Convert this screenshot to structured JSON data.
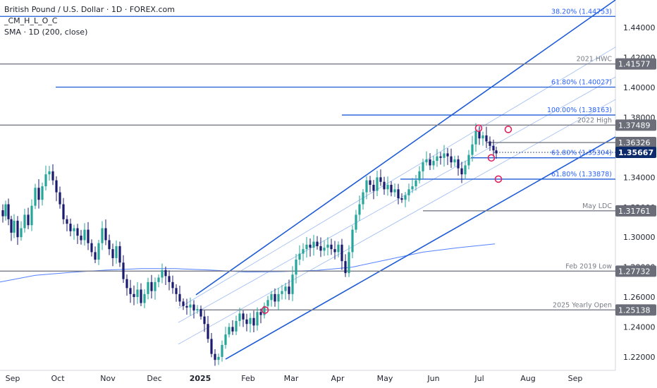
{
  "legend": {
    "title": "British Pound / U.S. Dollar · 1D · FOREX.com",
    "study1": "_CM_H_L_O_C",
    "study2": "SMA · 1D (200, close)"
  },
  "chart_data": {
    "type": "candlestick",
    "ylim": [
      1.211,
      1.4585
    ],
    "y_ticks": [
      {
        "value": 1.22,
        "label": "1.22000"
      },
      {
        "value": 1.24,
        "label": "1.24000"
      },
      {
        "value": 1.26,
        "label": "1.26000"
      },
      {
        "value": 1.28,
        "label": "1.28000"
      },
      {
        "value": 1.3,
        "label": "1.30000"
      },
      {
        "value": 1.32,
        "label": "1.32000"
      },
      {
        "value": 1.34,
        "label": "1.34000"
      },
      {
        "value": 1.36,
        "label": "1.36000"
      },
      {
        "value": 1.38,
        "label": "1.38000"
      },
      {
        "value": 1.4,
        "label": "1.40000"
      },
      {
        "value": 1.42,
        "label": "1.42000"
      },
      {
        "value": 1.44,
        "label": "1.44000"
      }
    ],
    "x_ticks": [
      {
        "label": "Sep",
        "bold": false
      },
      {
        "label": "Oct",
        "bold": false
      },
      {
        "label": "Nov",
        "bold": false
      },
      {
        "label": "Dec",
        "bold": false
      },
      {
        "label": "2025",
        "bold": true
      },
      {
        "label": "Feb",
        "bold": false
      },
      {
        "label": "Mar",
        "bold": false
      },
      {
        "label": "Apr",
        "bold": false
      },
      {
        "label": "May",
        "bold": false
      },
      {
        "label": "Jun",
        "bold": false
      },
      {
        "label": "Jul",
        "bold": false
      },
      {
        "label": "Aug",
        "bold": false
      },
      {
        "label": "Sep",
        "bold": false
      }
    ],
    "levels": [
      {
        "value": 1.44753,
        "label": "38.20% (1.44753)",
        "style": "fib",
        "tag": ""
      },
      {
        "value": 1.41577,
        "label": "2021 HWC",
        "style": "gray",
        "tag": "1.41577"
      },
      {
        "value": 1.40027,
        "label": "61.80% (1.40027)",
        "style": "fib",
        "tag": ""
      },
      {
        "value": 1.38163,
        "label": "100.00% (1.38163)",
        "style": "fib",
        "tag": ""
      },
      {
        "value": 1.37489,
        "label": "2022 High",
        "style": "gray",
        "tag": "1.37489"
      },
      {
        "value": 1.36326,
        "label": "",
        "style": "gray",
        "tag": "1.36326"
      },
      {
        "value": 1.35304,
        "label": "61.80% (1.35304)",
        "style": "fib",
        "tag": ""
      },
      {
        "value": 1.33878,
        "label": "61.80% (1.33878)",
        "style": "fib",
        "tag": ""
      },
      {
        "value": 1.31761,
        "label": "May LDC",
        "style": "gray",
        "tag": "1.31761"
      },
      {
        "value": 1.27732,
        "label": "Feb 2019 Low",
        "style": "gray",
        "tag": "1.27732"
      },
      {
        "value": 1.25138,
        "label": "2025 Yearly Open",
        "style": "gray",
        "tag": "1.25138"
      }
    ],
    "current_price": {
      "value": 1.35667,
      "label": "1.35667"
    },
    "ohlc_path": [
      [
        0,
        1.318
      ],
      [
        4,
        1.314
      ],
      [
        8,
        1.322
      ],
      [
        12,
        1.312
      ],
      [
        16,
        1.303
      ],
      [
        20,
        1.311
      ],
      [
        25,
        1.3
      ],
      [
        30,
        1.306
      ],
      [
        35,
        1.315
      ],
      [
        40,
        1.308
      ],
      [
        45,
        1.321
      ],
      [
        50,
        1.333
      ],
      [
        55,
        1.325
      ],
      [
        60,
        1.334
      ],
      [
        65,
        1.342
      ],
      [
        70,
        1.344
      ],
      [
        75,
        1.338
      ],
      [
        80,
        1.33
      ],
      [
        85,
        1.322
      ],
      [
        90,
        1.312
      ],
      [
        95,
        1.309
      ],
      [
        100,
        1.304
      ],
      [
        105,
        1.306
      ],
      [
        110,
        1.301
      ],
      [
        115,
        1.298
      ],
      [
        120,
        1.305
      ],
      [
        125,
        1.296
      ],
      [
        130,
        1.29
      ],
      [
        135,
        1.285
      ],
      [
        140,
        1.296
      ],
      [
        145,
        1.306
      ],
      [
        150,
        1.298
      ],
      [
        155,
        1.292
      ],
      [
        160,
        1.286
      ],
      [
        165,
        1.294
      ],
      [
        170,
        1.283
      ],
      [
        175,
        1.272
      ],
      [
        180,
        1.266
      ],
      [
        185,
        1.262
      ],
      [
        190,
        1.26
      ],
      [
        195,
        1.265
      ],
      [
        200,
        1.256
      ],
      [
        205,
        1.262
      ],
      [
        210,
        1.27
      ],
      [
        215,
        1.264
      ],
      [
        220,
        1.27
      ],
      [
        225,
        1.273
      ],
      [
        230,
        1.278
      ],
      [
        235,
        1.274
      ],
      [
        240,
        1.27
      ],
      [
        245,
        1.266
      ],
      [
        250,
        1.262
      ],
      [
        255,
        1.257
      ],
      [
        260,
        1.254
      ],
      [
        265,
        1.253
      ],
      [
        270,
        1.255
      ],
      [
        275,
        1.251
      ],
      [
        280,
        1.252
      ],
      [
        285,
        1.247
      ],
      [
        290,
        1.242
      ],
      [
        295,
        1.232
      ],
      [
        300,
        1.222
      ],
      [
        305,
        1.218
      ],
      [
        310,
        1.22
      ],
      [
        315,
        1.228
      ],
      [
        320,
        1.235
      ],
      [
        325,
        1.24
      ],
      [
        330,
        1.237
      ],
      [
        335,
        1.244
      ],
      [
        340,
        1.249
      ],
      [
        345,
        1.245
      ],
      [
        350,
        1.242
      ],
      [
        355,
        1.246
      ],
      [
        360,
        1.241
      ],
      [
        365,
        1.25
      ],
      [
        370,
        1.248
      ],
      [
        375,
        1.254
      ],
      [
        380,
        1.258
      ],
      [
        385,
        1.262
      ],
      [
        390,
        1.257
      ],
      [
        395,
        1.262
      ],
      [
        400,
        1.264
      ],
      [
        405,
        1.267
      ],
      [
        410,
        1.262
      ],
      [
        415,
        1.275
      ],
      [
        420,
        1.285
      ],
      [
        425,
        1.289
      ],
      [
        430,
        1.292
      ],
      [
        435,
        1.295
      ],
      [
        440,
        1.293
      ],
      [
        445,
        1.297
      ],
      [
        450,
        1.294
      ],
      [
        455,
        1.291
      ],
      [
        460,
        1.293
      ],
      [
        465,
        1.295
      ],
      [
        470,
        1.292
      ],
      [
        475,
        1.29
      ],
      [
        480,
        1.295
      ],
      [
        485,
        1.284
      ],
      [
        490,
        1.276
      ],
      [
        495,
        1.29
      ],
      [
        500,
        1.305
      ],
      [
        505,
        1.315
      ],
      [
        510,
        1.322
      ],
      [
        515,
        1.33
      ],
      [
        520,
        1.338
      ],
      [
        525,
        1.335
      ],
      [
        530,
        1.331
      ],
      [
        535,
        1.34
      ],
      [
        540,
        1.337
      ],
      [
        545,
        1.332
      ],
      [
        550,
        1.335
      ],
      [
        555,
        1.33
      ],
      [
        560,
        1.332
      ],
      [
        565,
        1.326
      ],
      [
        570,
        1.325
      ],
      [
        575,
        1.328
      ],
      [
        580,
        1.332
      ],
      [
        585,
        1.334
      ],
      [
        590,
        1.338
      ],
      [
        595,
        1.344
      ],
      [
        600,
        1.35
      ],
      [
        605,
        1.352
      ],
      [
        610,
        1.348
      ],
      [
        615,
        1.351
      ],
      [
        620,
        1.354
      ],
      [
        625,
        1.353
      ],
      [
        630,
        1.356
      ],
      [
        635,
        1.354
      ],
      [
        640,
        1.35
      ],
      [
        645,
        1.352
      ],
      [
        650,
        1.346
      ],
      [
        655,
        1.342
      ],
      [
        660,
        1.348
      ],
      [
        665,
        1.355
      ],
      [
        670,
        1.362
      ],
      [
        675,
        1.371
      ],
      [
        680,
        1.366
      ],
      [
        685,
        1.368
      ],
      [
        690,
        1.364
      ],
      [
        695,
        1.361
      ],
      [
        700,
        1.358
      ],
      [
        704,
        1.356
      ]
    ],
    "sma_path": [
      [
        0,
        1.27
      ],
      [
        50,
        1.2745
      ],
      [
        100,
        1.2765
      ],
      [
        150,
        1.278
      ],
      [
        200,
        1.279
      ],
      [
        250,
        1.279
      ],
      [
        300,
        1.278
      ],
      [
        350,
        1.2767
      ],
      [
        400,
        1.277
      ],
      [
        450,
        1.2778
      ],
      [
        500,
        1.28
      ],
      [
        550,
        1.285
      ],
      [
        600,
        1.29
      ],
      [
        650,
        1.293
      ],
      [
        702,
        1.2955
      ]
    ],
    "channel": {
      "upper": [
        [
          278,
          1.2615
        ],
        [
          873,
          1.4585
        ]
      ],
      "lower": [
        [
          320,
          1.2185
        ],
        [
          873,
          1.367
        ]
      ],
      "mid_lines": [
        [
          [
            253,
            1.243
          ],
          [
            873,
            1.407
          ]
        ],
        [
          [
            253,
            1.2285
          ],
          [
            873,
            1.392
          ]
        ],
        [
          [
            253,
            1.2525
          ],
          [
            873,
            1.427
          ]
        ]
      ]
    },
    "markers": [
      [
        376,
        1.2513
      ],
      [
        679,
        1.3728
      ],
      [
        721,
        1.372
      ],
      [
        697,
        1.353
      ],
      [
        707,
        1.3388
      ]
    ]
  }
}
